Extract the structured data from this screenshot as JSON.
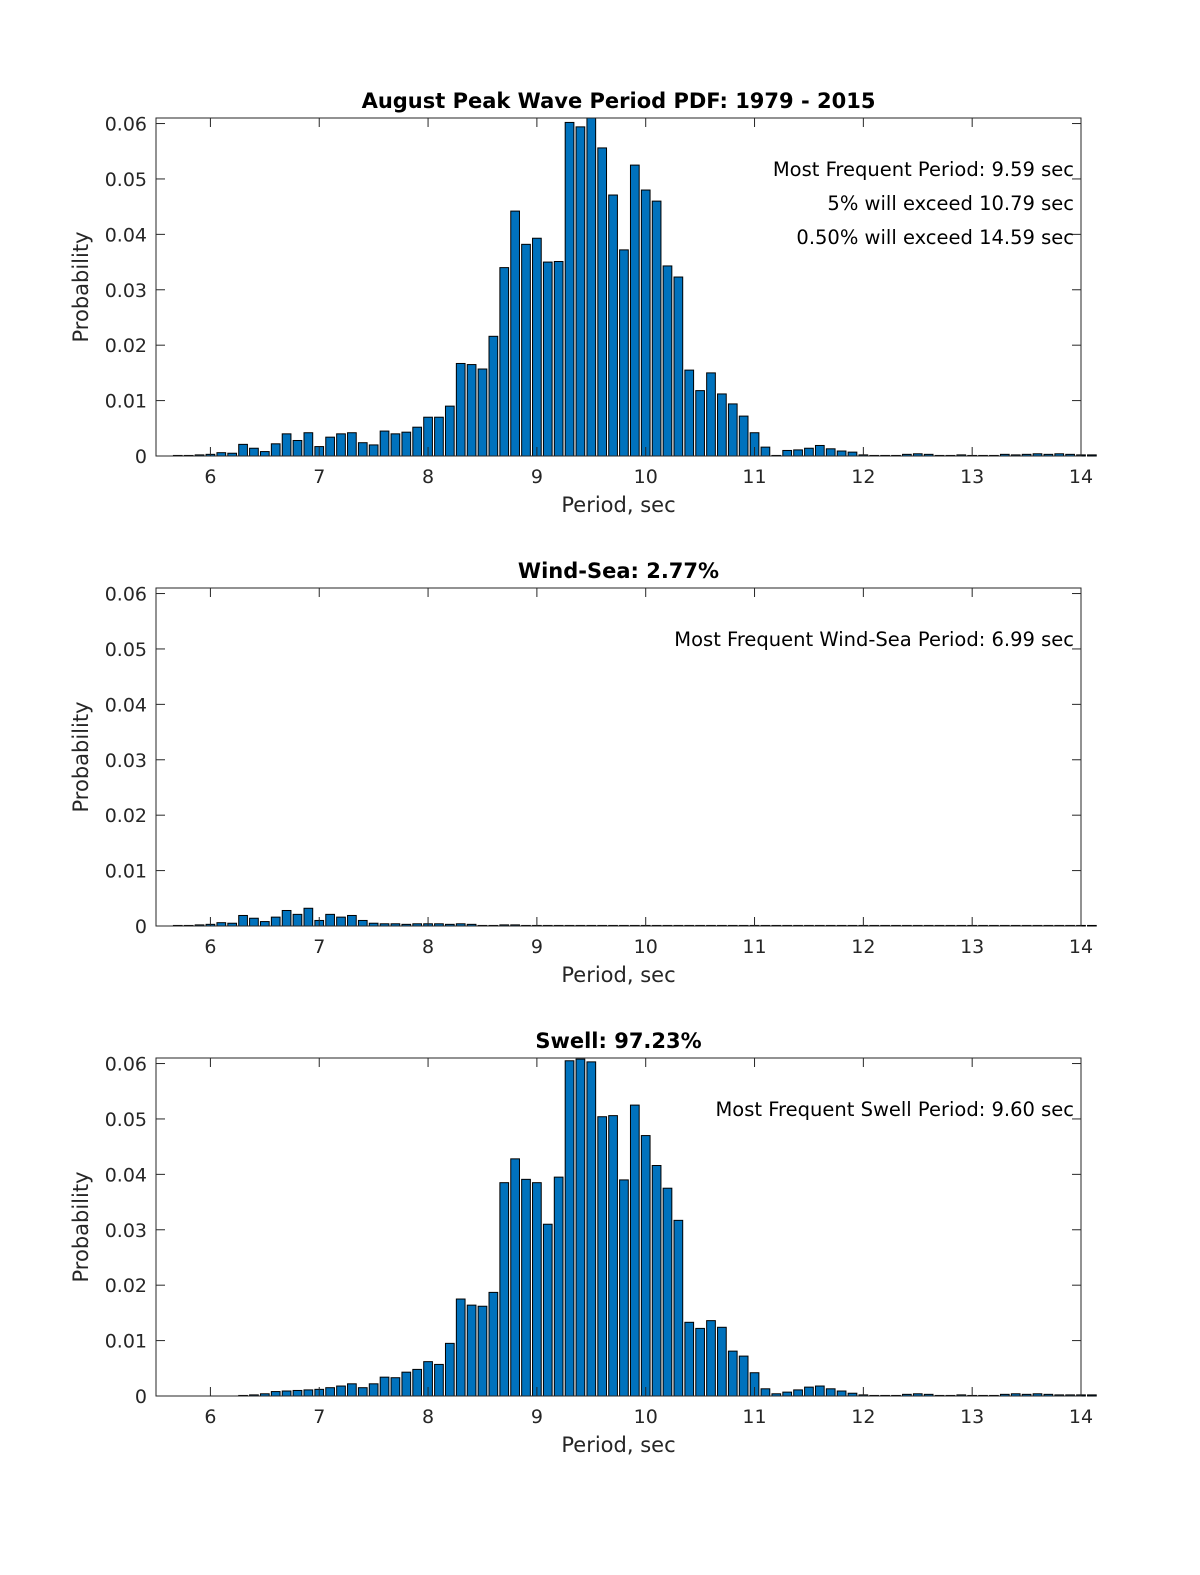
{
  "chart_data": [
    {
      "type": "bar",
      "title": "August Peak Wave Period PDF: 1979 - 2015",
      "xlabel": "Period, sec",
      "ylabel": "Probability",
      "xlim": [
        5.5,
        14
      ],
      "ylim": [
        0,
        0.061
      ],
      "xticks": [
        6,
        7,
        8,
        9,
        10,
        11,
        12,
        13,
        14
      ],
      "yticks": [
        0,
        0.01,
        0.02,
        0.03,
        0.04,
        0.05,
        0.06
      ],
      "ytick_labels": [
        "0",
        "0.01",
        "0.02",
        "0.03",
        "0.04",
        "0.05",
        "0.06"
      ],
      "bin_start": 5.7,
      "bin_width": 0.1,
      "annotations": [
        "Most Frequent Period: 9.59 sec",
        "5% will exceed 10.79 sec",
        "0.50% will exceed 14.59 sec"
      ],
      "values": [
        0.0001,
        0.0001,
        0.0002,
        0.0003,
        0.0006,
        0.0005,
        0.0021,
        0.0014,
        0.0008,
        0.0022,
        0.004,
        0.0028,
        0.0042,
        0.0017,
        0.0034,
        0.004,
        0.0042,
        0.0024,
        0.002,
        0.0045,
        0.004,
        0.0043,
        0.0052,
        0.007,
        0.007,
        0.009,
        0.0167,
        0.0165,
        0.0157,
        0.0216,
        0.034,
        0.0442,
        0.0382,
        0.0393,
        0.035,
        0.0351,
        0.0602,
        0.0594,
        0.0612,
        0.0556,
        0.0471,
        0.0372,
        0.0525,
        0.048,
        0.046,
        0.0343,
        0.0323,
        0.0155,
        0.0118,
        0.015,
        0.0112,
        0.0094,
        0.0072,
        0.0042,
        0.0016,
        0.0001,
        0.001,
        0.0011,
        0.0014,
        0.0019,
        0.0013,
        0.0009,
        0.0007,
        0.0002,
        0.0001,
        0.0001,
        0.0001,
        0.0003,
        0.0004,
        0.0003,
        0.0001,
        0.0001,
        0.0002,
        0.0001,
        0.0001,
        0.0001,
        0.0003,
        0.0002,
        0.0003,
        0.0004,
        0.0003,
        0.0004,
        0.0003,
        0.0002,
        0.0002
      ]
    },
    {
      "type": "bar",
      "title": "Wind-Sea: 2.77%",
      "xlabel": "Period, sec",
      "ylabel": "Probability",
      "xlim": [
        5.5,
        14
      ],
      "ylim": [
        0,
        0.061
      ],
      "xticks": [
        6,
        7,
        8,
        9,
        10,
        11,
        12,
        13,
        14
      ],
      "yticks": [
        0,
        0.01,
        0.02,
        0.03,
        0.04,
        0.05,
        0.06
      ],
      "ytick_labels": [
        "0",
        "0.01",
        "0.02",
        "0.03",
        "0.04",
        "0.05",
        "0.06"
      ],
      "bin_start": 5.7,
      "bin_width": 0.1,
      "annotations": [
        "Most Frequent Wind-Sea Period: 6.99 sec"
      ],
      "values": [
        0.0001,
        0.0001,
        0.0002,
        0.0003,
        0.0006,
        0.0005,
        0.0019,
        0.0014,
        0.0008,
        0.0016,
        0.0028,
        0.0021,
        0.0032,
        0.001,
        0.0021,
        0.0016,
        0.0019,
        0.001,
        0.0005,
        0.0004,
        0.0004,
        0.0003,
        0.0004,
        0.0004,
        0.0004,
        0.0003,
        0.0004,
        0.0003,
        0.0001,
        0.0001,
        0.0002,
        0.0002,
        0.0001,
        0.0001,
        0.0001,
        0.0001,
        0.0001,
        0.0001,
        0.0001,
        0.0001,
        0.0001,
        0.0001,
        0.0001,
        0.0001,
        0.0001,
        0.0001,
        0.0001,
        0.0001,
        0.0001,
        0.0001,
        0.0001,
        0.0001,
        0.0001,
        0.0001,
        0.0001,
        0.0001,
        0.0001,
        0.0001,
        0.0001,
        0.0001,
        0.0001,
        0.0001,
        0.0001,
        0.0001,
        0.0001,
        0.0001,
        0.0001,
        0.0001,
        0.0001,
        0.0001,
        0.0001,
        0.0001,
        0.0001,
        0.0001,
        0.0001,
        0.0001,
        0.0001,
        0.0001,
        0.0001,
        0.0001,
        0.0001,
        0.0001,
        0.0001,
        0.0001,
        0.0001
      ]
    },
    {
      "type": "bar",
      "title": "Swell: 97.23%",
      "xlabel": "Period, sec",
      "ylabel": "Probability",
      "xlim": [
        5.5,
        14
      ],
      "ylim": [
        0,
        0.061
      ],
      "xticks": [
        6,
        7,
        8,
        9,
        10,
        11,
        12,
        13,
        14
      ],
      "yticks": [
        0,
        0.01,
        0.02,
        0.03,
        0.04,
        0.05,
        0.06
      ],
      "ytick_labels": [
        "0",
        "0.01",
        "0.02",
        "0.03",
        "0.04",
        "0.05",
        "0.06"
      ],
      "bin_start": 5.7,
      "bin_width": 0.1,
      "annotations": [
        "Most Frequent Swell Period: 9.60 sec"
      ],
      "values": [
        0,
        0,
        0,
        0,
        0,
        0,
        0.0001,
        0.0002,
        0.0004,
        0.0008,
        0.0009,
        0.001,
        0.0011,
        0.0012,
        0.0015,
        0.0018,
        0.0022,
        0.0015,
        0.0022,
        0.0034,
        0.0033,
        0.0043,
        0.0048,
        0.0062,
        0.0057,
        0.0095,
        0.0175,
        0.0164,
        0.0162,
        0.0187,
        0.0385,
        0.0428,
        0.0391,
        0.0385,
        0.031,
        0.0395,
        0.0605,
        0.0608,
        0.0603,
        0.0504,
        0.0506,
        0.039,
        0.0525,
        0.047,
        0.0416,
        0.0375,
        0.0317,
        0.0133,
        0.0122,
        0.0136,
        0.0124,
        0.0081,
        0.0072,
        0.0042,
        0.0013,
        0.0004,
        0.0007,
        0.0011,
        0.0016,
        0.0018,
        0.0013,
        0.0009,
        0.0005,
        0.0002,
        0.0001,
        0.0001,
        0.0001,
        0.0003,
        0.0004,
        0.0003,
        0.0001,
        0.0001,
        0.0002,
        0.0001,
        0.0001,
        0.0001,
        0.0003,
        0.0004,
        0.0003,
        0.0004,
        0.0003,
        0.0002,
        0.0002,
        0.0002,
        0.0002
      ]
    }
  ]
}
